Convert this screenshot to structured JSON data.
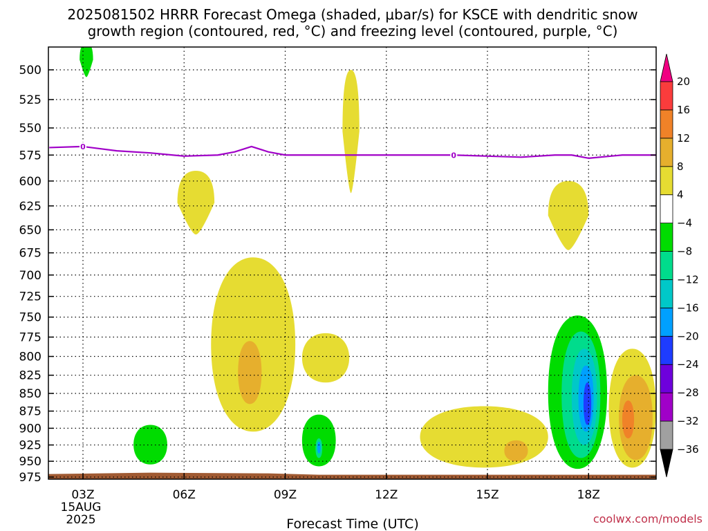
{
  "title_line1": "2025081502 HRRR Forecast Omega (shaded, μbar/s) for KSCE with dendritic snow",
  "title_line2": "growth region (contoured, red, °C) and freezing level (contoured, purple, °C)",
  "credit": "coolwx.com/models",
  "chart_data": {
    "type": "heatmap",
    "xlabel": "Forecast Time (UTC)",
    "ylabel": "",
    "x_ticks": [
      {
        "hour": 3,
        "label": "03Z",
        "sub1": "15AUG",
        "sub2": "2025"
      },
      {
        "hour": 6,
        "label": "06Z"
      },
      {
        "hour": 9,
        "label": "09Z"
      },
      {
        "hour": 12,
        "label": "12Z"
      },
      {
        "hour": 15,
        "label": "15Z"
      },
      {
        "hour": 18,
        "label": "18Z"
      }
    ],
    "xlim": [
      2,
      20
    ],
    "y_ticks": [
      500,
      525,
      550,
      575,
      600,
      625,
      650,
      675,
      700,
      725,
      750,
      775,
      800,
      825,
      850,
      875,
      900,
      925,
      950,
      975
    ],
    "ylim": [
      475,
      985
    ],
    "y_scale": "log-pressure",
    "grid": true,
    "colorbar": {
      "levels": [
        -36,
        -32,
        -28,
        -24,
        -20,
        -16,
        -12,
        -8,
        -4,
        4,
        8,
        12,
        16,
        20
      ],
      "colors": [
        "#a0a0a0",
        "#a000c8",
        "#6e00dc",
        "#1e3cff",
        "#00a0ff",
        "#00c8c8",
        "#00dc8c",
        "#00dc00",
        "#ffffff",
        "#e6dc32",
        "#e6af2d",
        "#f08228",
        "#fa3c3c",
        "#f00082"
      ],
      "under_color": "#000000",
      "over_color": "#f00082"
    },
    "omega_regions": [
      {
        "color": "#00dc00",
        "hour": [
          2.9,
          3.3
        ],
        "p": [
          478,
          506
        ],
        "shape": "lobe"
      },
      {
        "color": "#e6dc32",
        "hour": [
          10.7,
          11.2
        ],
        "p": [
          500,
          612
        ],
        "shape": "lobe"
      },
      {
        "color": "#e6dc32",
        "hour": [
          5.8,
          6.9
        ],
        "p": [
          590,
          655
        ],
        "shape": "lobe"
      },
      {
        "color": "#e6dc32",
        "hour": [
          16.8,
          18.0
        ],
        "p": [
          600,
          672
        ],
        "shape": "lobe"
      },
      {
        "color": "#e6dc32",
        "hour": [
          6.8,
          9.3
        ],
        "p": [
          680,
          905
        ],
        "shape": "blob"
      },
      {
        "color": "#e6af2d",
        "hour": [
          7.6,
          8.3
        ],
        "p": [
          780,
          865
        ],
        "shape": "blob"
      },
      {
        "color": "#e6dc32",
        "hour": [
          9.5,
          10.9
        ],
        "p": [
          770,
          835
        ],
        "shape": "blob"
      },
      {
        "color": "#00dc00",
        "hour": [
          4.5,
          5.5
        ],
        "p": [
          895,
          955
        ],
        "shape": "blob"
      },
      {
        "color": "#00dc00",
        "hour": [
          9.5,
          10.5
        ],
        "p": [
          880,
          958
        ],
        "shape": "blob"
      },
      {
        "color": "#00dc8c",
        "hour": [
          9.9,
          10.1
        ],
        "p": [
          915,
          945
        ],
        "shape": "blob"
      },
      {
        "color": "#00a0ff",
        "hour": [
          9.95,
          10.05
        ],
        "p": [
          920,
          938
        ],
        "shape": "blob"
      },
      {
        "color": "#e6dc32",
        "hour": [
          13.0,
          16.8
        ],
        "p": [
          868,
          960
        ],
        "shape": "blob"
      },
      {
        "color": "#e6af2d",
        "hour": [
          15.5,
          16.2
        ],
        "p": [
          918,
          950
        ],
        "shape": "blob"
      },
      {
        "color": "#e6dc32",
        "hour": [
          18.6,
          20.0
        ],
        "p": [
          790,
          960
        ],
        "shape": "blob"
      },
      {
        "color": "#e6af2d",
        "hour": [
          18.9,
          19.9
        ],
        "p": [
          825,
          948
        ],
        "shape": "blob"
      },
      {
        "color": "#f08228",
        "hour": [
          19.0,
          19.35
        ],
        "p": [
          860,
          915
        ],
        "shape": "blob"
      },
      {
        "color": "#00dc00",
        "hour": [
          16.8,
          18.55
        ],
        "p": [
          748,
          962
        ],
        "shape": "blob"
      },
      {
        "color": "#00dc8c",
        "hour": [
          17.2,
          18.35
        ],
        "p": [
          768,
          945
        ],
        "shape": "blob"
      },
      {
        "color": "#00c8c8",
        "hour": [
          17.5,
          18.25
        ],
        "p": [
          790,
          925
        ],
        "shape": "blob"
      },
      {
        "color": "#00a0ff",
        "hour": [
          17.7,
          18.15
        ],
        "p": [
          812,
          905
        ],
        "shape": "blob"
      },
      {
        "color": "#1e3cff",
        "hour": [
          17.85,
          18.08
        ],
        "p": [
          835,
          895
        ],
        "shape": "blob"
      }
    ],
    "freezing_level": {
      "label": "0",
      "color": "#a000c8",
      "points": [
        [
          2,
          568
        ],
        [
          3,
          567
        ],
        [
          4,
          571
        ],
        [
          5,
          573
        ],
        [
          6,
          576
        ],
        [
          7,
          575
        ],
        [
          7.5,
          572
        ],
        [
          8,
          567
        ],
        [
          8.5,
          572
        ],
        [
          9,
          575
        ],
        [
          10,
          575
        ],
        [
          11,
          575
        ],
        [
          12,
          575
        ],
        [
          13,
          575
        ],
        [
          14,
          575
        ],
        [
          15,
          576
        ],
        [
          16,
          577
        ],
        [
          17,
          575
        ],
        [
          17.5,
          575
        ],
        [
          18,
          578
        ],
        [
          19,
          575
        ],
        [
          20,
          575
        ]
      ],
      "label_hours": [
        3,
        14
      ]
    },
    "surface": {
      "color": "#a05a32",
      "p_top": 968,
      "p_bottom": 985
    }
  }
}
